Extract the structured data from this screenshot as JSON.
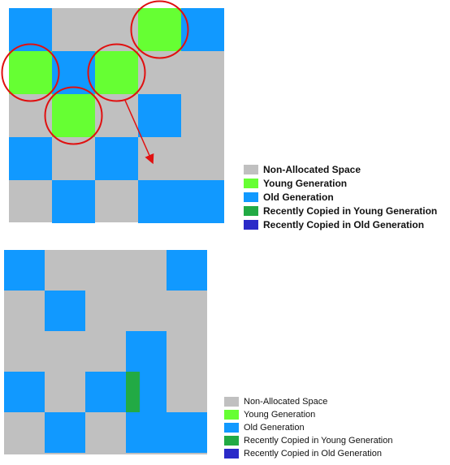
{
  "colors": {
    "non_allocated": "#c0c0c0",
    "young": "#66ff33",
    "old": "#1199ff",
    "recent_young": "#22aa44",
    "recent_old": "#2a2ac8",
    "highlight": "#e01010"
  },
  "legend_top": {
    "items": [
      {
        "key": "non_allocated",
        "label": "Non-Allocated Space"
      },
      {
        "key": "young",
        "label": "Young Generation"
      },
      {
        "key": "old",
        "label": "Old Generation"
      },
      {
        "key": "recent_young",
        "label": "Recently Copied in Young Generation"
      },
      {
        "key": "recent_old",
        "label": "Recently Copied in Old Generation"
      }
    ]
  },
  "legend_bottom": {
    "items": [
      {
        "key": "non_allocated",
        "label": "Non-Allocated Space"
      },
      {
        "key": "young",
        "label": "Young Generation"
      },
      {
        "key": "old",
        "label": "Old Generation"
      },
      {
        "key": "recent_young",
        "label": "Recently Copied in Young Generation"
      },
      {
        "key": "recent_old",
        "label": "Recently Copied in Old Generation"
      }
    ]
  },
  "top_heap": {
    "cells": [
      {
        "row": 0,
        "col": 0,
        "type": "old"
      },
      {
        "row": 0,
        "col": 3,
        "type": "young"
      },
      {
        "row": 0,
        "col": 4,
        "type": "old"
      },
      {
        "row": 1,
        "col": 0,
        "type": "young"
      },
      {
        "row": 1,
        "col": 1,
        "type": "old"
      },
      {
        "row": 1,
        "col": 2,
        "type": "young"
      },
      {
        "row": 2,
        "col": 1,
        "type": "young"
      },
      {
        "row": 2,
        "col": 3,
        "type": "old"
      },
      {
        "row": 3,
        "col": 0,
        "type": "old"
      },
      {
        "row": 3,
        "col": 2,
        "type": "old"
      },
      {
        "row": 4,
        "col": 1,
        "type": "old"
      },
      {
        "row": 4,
        "col": 3,
        "type": "old"
      },
      {
        "row": 4,
        "col": 4,
        "type": "old"
      }
    ],
    "highlighted": [
      {
        "row": 0,
        "col": 3
      },
      {
        "row": 1,
        "col": 0
      },
      {
        "row": 1,
        "col": 2
      },
      {
        "row": 2,
        "col": 1
      }
    ]
  },
  "bottom_heap": {
    "cells": [
      {
        "row": 0,
        "col": 0,
        "type": "old"
      },
      {
        "row": 0,
        "col": 4,
        "type": "old"
      },
      {
        "row": 1,
        "col": 1,
        "type": "old"
      },
      {
        "row": 2,
        "col": 3,
        "type": "old"
      },
      {
        "row": 3,
        "col": 0,
        "type": "old"
      },
      {
        "row": 3,
        "col": 2,
        "type": "old"
      },
      {
        "row": 3,
        "col": 3,
        "type": "old"
      },
      {
        "row": 4,
        "col": 1,
        "type": "old"
      },
      {
        "row": 4,
        "col": 3,
        "type": "old"
      },
      {
        "row": 4,
        "col": 4,
        "type": "old"
      }
    ],
    "recent_young_strip": {
      "row": 3,
      "col": 3
    }
  }
}
